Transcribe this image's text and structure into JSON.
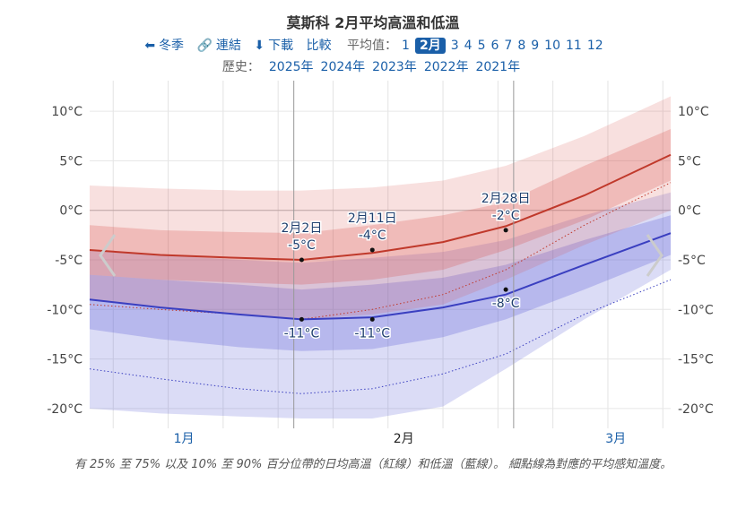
{
  "title": "莫斯科 2月平均高溫和低溫",
  "toolbar": {
    "season": "冬季",
    "link": "連結",
    "download": "下載",
    "compare": "比較",
    "avg_label": "平均值：",
    "months": [
      "1",
      "2月",
      "3",
      "4",
      "5",
      "6",
      "7",
      "8",
      "9",
      "10",
      "11",
      "12"
    ],
    "active_month_index": 1
  },
  "history": {
    "label": "歷史：",
    "years": [
      "2025年",
      "2024年",
      "2023年",
      "2022年",
      "2021年"
    ]
  },
  "caption": "有 25% 至 75% 以及 10% 至 90% 百分位帶的日均高溫（紅線）和低溫（藍線）。 細點線為對應的平均感知溫度。",
  "icons": {
    "season": "arrow-left-icon",
    "link": "link-icon",
    "download": "download-icon",
    "prev": "chevron-left-icon",
    "next": "chevron-right-icon"
  },
  "colors": {
    "high_line": "#c0392b",
    "low_line": "#3a3fc0",
    "high_band": "#d9534f",
    "low_band": "#5a5fd6",
    "accent": "#1a5fa8"
  },
  "chart_data": {
    "type": "area",
    "x_start": "2025-01-06",
    "x_end": "2025-03-21",
    "month_ticks": [
      "1月",
      "2月",
      "3月"
    ],
    "ylim": [
      -22,
      12
    ],
    "yticks": [
      10,
      5,
      0,
      -5,
      -10,
      -15,
      -20
    ],
    "ytick_labels": [
      "10°C",
      "5°C",
      "0°C",
      "-5°C",
      "-10°C",
      "-15°C",
      "-20°C"
    ],
    "grid": true,
    "series": [
      {
        "dates": [
          "2025-01-06",
          "2025-01-15",
          "2025-01-25",
          "2025-02-02",
          "2025-02-11",
          "2025-02-20",
          "2025-02-28",
          "2025-03-10",
          "2025-03-21"
        ],
        "high": [
          -4,
          -4.5,
          -4.8,
          -5,
          -4.3,
          -3.2,
          -1.6,
          1.5,
          5.6
        ],
        "high_p25": [
          -6.5,
          -7,
          -7.3,
          -7.5,
          -7,
          -6,
          -4,
          -1,
          3
        ],
        "high_p75": [
          -1.5,
          -2,
          -2.2,
          -2.3,
          -1.5,
          -0.5,
          0.8,
          4.5,
          8.2
        ],
        "high_p10": [
          -9,
          -9.8,
          -10.5,
          -11,
          -10.5,
          -9.5,
          -7,
          -3.5,
          0
        ],
        "high_p90": [
          2.5,
          2.2,
          2,
          2,
          2.3,
          3,
          4.5,
          7.5,
          11.5
        ],
        "feels_high": [
          -9.5,
          -10,
          -10.5,
          -11,
          -10,
          -8.5,
          -6,
          -1.5,
          2.8
        ],
        "low": [
          -9,
          -9.8,
          -10.5,
          -11,
          -10.8,
          -9.8,
          -8.5,
          -5.5,
          -2.3
        ],
        "low_p25": [
          -12,
          -13,
          -13.8,
          -14.2,
          -14,
          -12.8,
          -11,
          -8,
          -4.5
        ],
        "low_p75": [
          -6.5,
          -7,
          -7.5,
          -8,
          -7.5,
          -6.8,
          -5.5,
          -3,
          -0.5
        ],
        "low_p10": [
          -20,
          -20.5,
          -20.8,
          -21,
          -21,
          -19.8,
          -16,
          -11,
          -6
        ],
        "low_p90": [
          -4,
          -4.5,
          -5,
          -5.3,
          -4.8,
          -4.2,
          -3,
          -0.5,
          1.8
        ],
        "feels_low": [
          -16,
          -17,
          -18,
          -18.5,
          -18,
          -16.5,
          -14.5,
          -10.5,
          -7
        ]
      }
    ],
    "annotations": [
      {
        "date": "2025-02-02",
        "series": "high",
        "value": -5,
        "date_label": "2月2日",
        "value_label": "-5°C"
      },
      {
        "date": "2025-02-11",
        "series": "high",
        "value": -4,
        "date_label": "2月11日",
        "value_label": "-4°C"
      },
      {
        "date": "2025-02-28",
        "series": "high",
        "value": -2,
        "date_label": "2月28日",
        "value_label": "-2°C"
      },
      {
        "date": "2025-02-02",
        "series": "low",
        "value": -11,
        "value_label": "-11°C"
      },
      {
        "date": "2025-02-11",
        "series": "low",
        "value": -11,
        "value_label": "-11°C"
      },
      {
        "date": "2025-02-28",
        "series": "low",
        "value": -8,
        "value_label": "-8°C"
      }
    ]
  }
}
